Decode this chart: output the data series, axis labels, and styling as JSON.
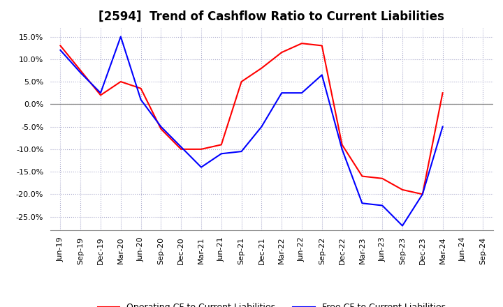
{
  "title": "[2594]  Trend of Cashflow Ratio to Current Liabilities",
  "x_labels": [
    "Jun-19",
    "Sep-19",
    "Dec-19",
    "Mar-20",
    "Jun-20",
    "Sep-20",
    "Dec-20",
    "Mar-21",
    "Jun-21",
    "Sep-21",
    "Dec-21",
    "Mar-22",
    "Jun-22",
    "Sep-22",
    "Dec-22",
    "Mar-23",
    "Jun-23",
    "Sep-23",
    "Dec-23",
    "Mar-24",
    "Jun-24",
    "Sep-24"
  ],
  "operating_cf": [
    13.0,
    7.5,
    2.0,
    5.0,
    3.5,
    -5.5,
    -10.0,
    -10.0,
    -9.0,
    5.0,
    8.0,
    11.5,
    13.5,
    13.0,
    -9.0,
    -16.0,
    -16.5,
    -19.0,
    -20.0,
    2.5,
    null,
    null
  ],
  "free_cf": [
    12.0,
    7.0,
    2.5,
    15.0,
    1.0,
    -5.0,
    -9.5,
    -14.0,
    -11.0,
    -10.5,
    -5.0,
    2.5,
    2.5,
    6.5,
    -10.0,
    -22.0,
    -22.5,
    -27.0,
    -20.0,
    -5.0,
    null,
    null
  ],
  "ylim": [
    -28,
    17
  ],
  "yticks": [
    15.0,
    10.0,
    5.0,
    0.0,
    -5.0,
    -10.0,
    -15.0,
    -20.0,
    -25.0
  ],
  "operating_color": "#ff0000",
  "free_color": "#0000ff",
  "grid_color": "#aaaacc",
  "zero_line_color": "#888888",
  "background_color": "#ffffff",
  "title_fontsize": 12,
  "legend_fontsize": 9,
  "tick_fontsize": 8
}
